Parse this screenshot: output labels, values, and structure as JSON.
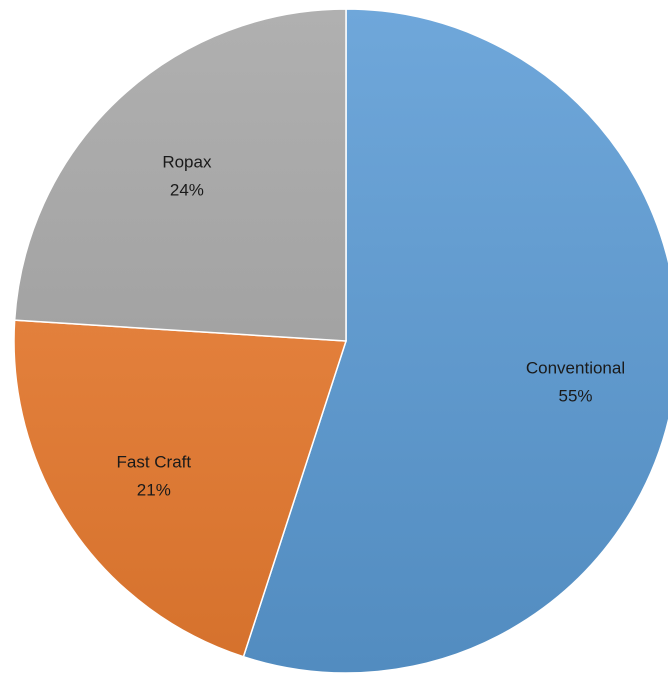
{
  "chart_data": {
    "type": "pie",
    "title": "",
    "slices": [
      {
        "label": "Conventional",
        "value": 55,
        "value_label": "55%",
        "color": "#5b9bd5"
      },
      {
        "label": "Fast Craft",
        "value": 21,
        "value_label": "21%",
        "color": "#ed7d31"
      },
      {
        "label": "Ropax",
        "value": 24,
        "value_label": "24%",
        "color": "#a5a5a5"
      }
    ],
    "start_angle": "12 o'clock",
    "direction": "clockwise",
    "legend": "none",
    "data_labels": "inside"
  }
}
